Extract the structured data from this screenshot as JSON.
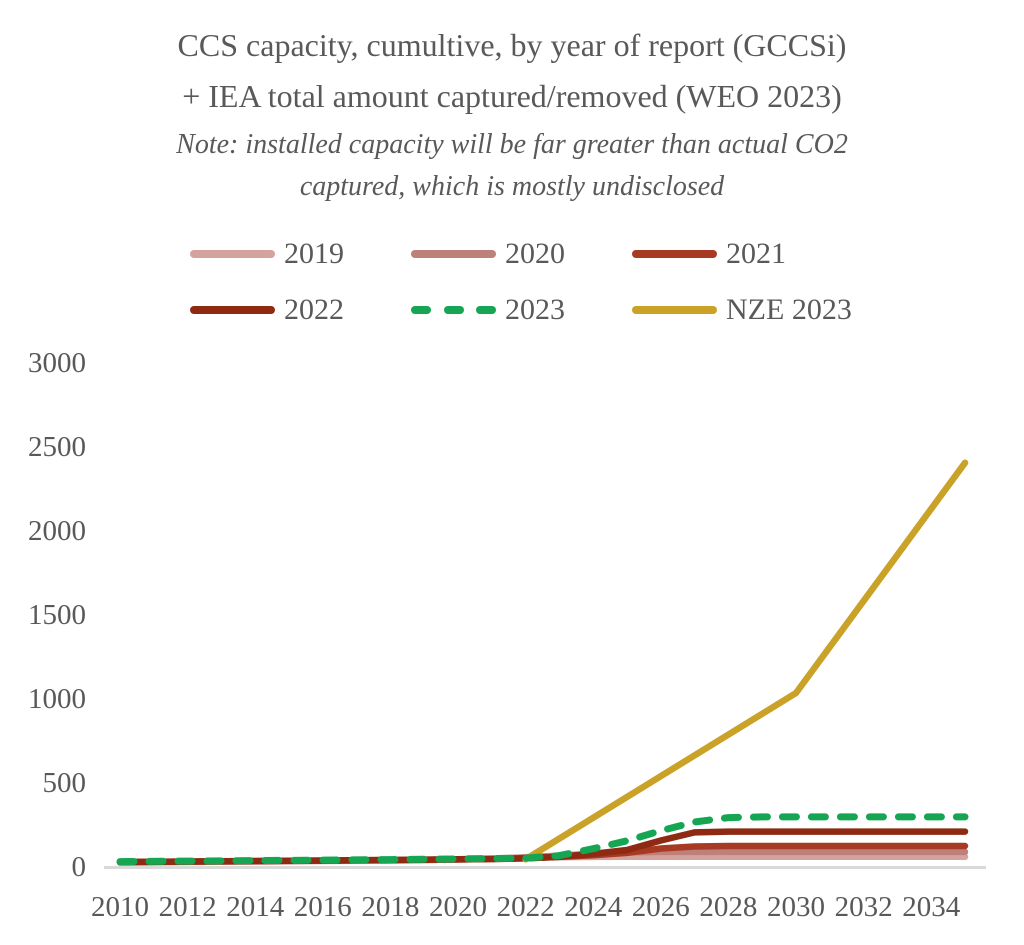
{
  "header": {
    "title_line1": "CCS capacity, cumultive, by year of report (GCCSi)",
    "title_line2": "+ IEA total amount captured/removed (WEO 2023)",
    "note_line1": "Note: installed capacity will be far greater than actual CO2",
    "note_line2": "captured, which is mostly undisclosed"
  },
  "colors": {
    "title_gray": "#595959",
    "axis_gray": "#595959",
    "baseline_gray": "#d9d9d9",
    "series_2019": "#d5a39d",
    "series_2020": "#bd807a",
    "series_2021": "#a83a23",
    "series_2022": "#8e2a12",
    "series_2023": "#16a653",
    "series_nze_2023": "#c9a227"
  },
  "legend": {
    "position": "top",
    "items": [
      {
        "label": "2019",
        "color": "#d5a39d",
        "dashed": false
      },
      {
        "label": "2020",
        "color": "#bd807a",
        "dashed": false
      },
      {
        "label": "2021",
        "color": "#a83a23",
        "dashed": false
      },
      {
        "label": "2022",
        "color": "#8e2a12",
        "dashed": false
      },
      {
        "label": "2023",
        "color": "#16a653",
        "dashed": true
      },
      {
        "label": "NZE 2023",
        "color": "#c9a227",
        "dashed": false
      }
    ]
  },
  "chart_data": {
    "type": "line",
    "title": "CCS capacity, cumultive, by year of report (GCCSi) + IEA total amount captured/removed (WEO 2023)",
    "subtitle": "Note: installed capacity will be far greater than actual CO2 captured, which is mostly undisclosed",
    "xlabel": "",
    "ylabel": "",
    "xlim": [
      2010,
      2035
    ],
    "ylim": [
      0,
      3000
    ],
    "xticks": [
      2010,
      2012,
      2014,
      2016,
      2018,
      2020,
      2022,
      2024,
      2026,
      2028,
      2030,
      2032,
      2034
    ],
    "yticks": [
      0,
      500,
      1000,
      1500,
      2000,
      2500,
      3000
    ],
    "grid": false,
    "legend_position": "top",
    "series": [
      {
        "name": "2019",
        "color": "#d5a39d",
        "style": "solid",
        "points": [
          [
            2010,
            21
          ],
          [
            2012,
            24
          ],
          [
            2014,
            27
          ],
          [
            2016,
            30
          ],
          [
            2018,
            33
          ],
          [
            2019,
            35
          ],
          [
            2020,
            40
          ],
          [
            2021,
            44
          ],
          [
            2022,
            48
          ],
          [
            2023,
            52
          ],
          [
            2024,
            54
          ],
          [
            2025,
            55
          ],
          [
            2030,
            55
          ],
          [
            2035,
            55
          ]
        ]
      },
      {
        "name": "2020",
        "color": "#bd807a",
        "style": "solid",
        "points": [
          [
            2010,
            22
          ],
          [
            2012,
            25
          ],
          [
            2014,
            28
          ],
          [
            2016,
            31
          ],
          [
            2018,
            34
          ],
          [
            2020,
            38
          ],
          [
            2021,
            42
          ],
          [
            2022,
            52
          ],
          [
            2023,
            62
          ],
          [
            2024,
            73
          ],
          [
            2025,
            81
          ],
          [
            2026,
            84
          ],
          [
            2030,
            84
          ],
          [
            2035,
            84
          ]
        ]
      },
      {
        "name": "2021",
        "color": "#a83a23",
        "style": "solid",
        "points": [
          [
            2010,
            23
          ],
          [
            2012,
            26
          ],
          [
            2014,
            29
          ],
          [
            2016,
            32
          ],
          [
            2018,
            35
          ],
          [
            2020,
            39
          ],
          [
            2021,
            41
          ],
          [
            2022,
            46
          ],
          [
            2023,
            54
          ],
          [
            2024,
            64
          ],
          [
            2025,
            78
          ],
          [
            2026,
            104
          ],
          [
            2027,
            116
          ],
          [
            2028,
            119
          ],
          [
            2030,
            119
          ],
          [
            2035,
            119
          ]
        ]
      },
      {
        "name": "2022",
        "color": "#8e2a12",
        "style": "solid",
        "points": [
          [
            2010,
            24
          ],
          [
            2012,
            27
          ],
          [
            2014,
            30
          ],
          [
            2016,
            33
          ],
          [
            2018,
            36
          ],
          [
            2020,
            40
          ],
          [
            2022,
            45
          ],
          [
            2023,
            55
          ],
          [
            2024,
            72
          ],
          [
            2025,
            95
          ],
          [
            2026,
            152
          ],
          [
            2027,
            200
          ],
          [
            2028,
            205
          ],
          [
            2030,
            205
          ],
          [
            2035,
            205
          ]
        ]
      },
      {
        "name": "NZE 2023",
        "color": "#c9a227",
        "style": "solid",
        "points": [
          [
            2022,
            40
          ],
          [
            2030,
            1030
          ],
          [
            2035,
            2400
          ]
        ]
      },
      {
        "name": "2023",
        "color": "#16a653",
        "style": "dashed",
        "points": [
          [
            2010,
            26
          ],
          [
            2012,
            29
          ],
          [
            2014,
            32
          ],
          [
            2016,
            35
          ],
          [
            2018,
            38
          ],
          [
            2020,
            42
          ],
          [
            2022,
            47
          ],
          [
            2023,
            62
          ],
          [
            2024,
            103
          ],
          [
            2025,
            150
          ],
          [
            2026,
            210
          ],
          [
            2027,
            262
          ],
          [
            2028,
            288
          ],
          [
            2029,
            292
          ],
          [
            2030,
            292
          ],
          [
            2035,
            292
          ]
        ]
      }
    ]
  }
}
